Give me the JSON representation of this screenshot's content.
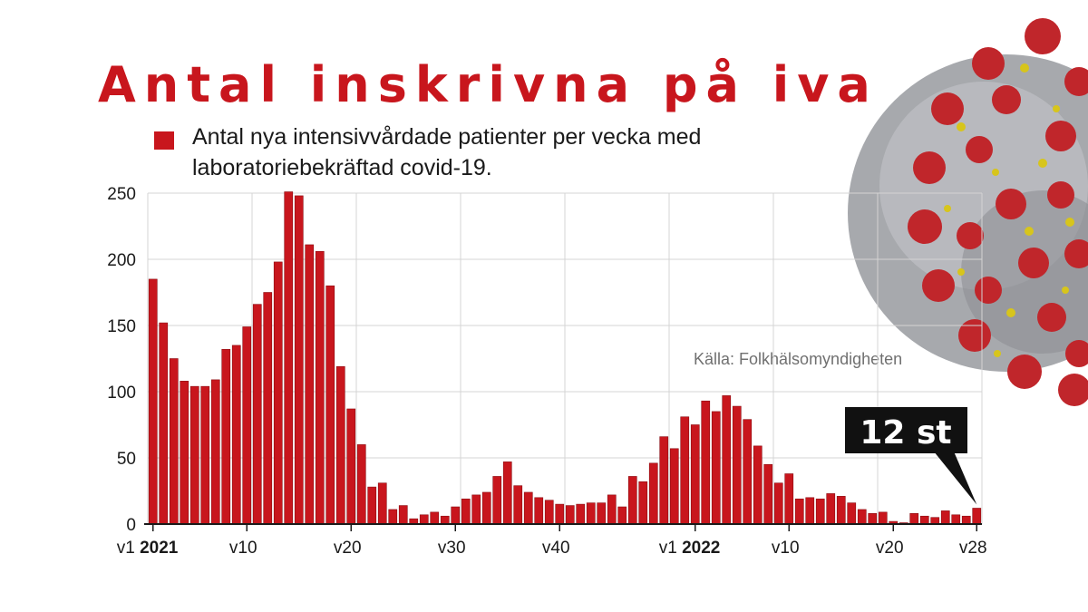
{
  "chart_data": {
    "type": "bar",
    "title": "Antal inskrivna på iva",
    "legend": "Antal nya intensivvårdade patienter per vecka med laboratoriebekräftad covid-19.",
    "source": "Källa: Folkhälsomyndigheten",
    "ylim": [
      0,
      250
    ],
    "yticks": [
      0,
      50,
      100,
      150,
      200,
      250
    ],
    "grid": true,
    "xtick_labels": [
      {
        "index": 0,
        "prefix": "v1 ",
        "bold": "2021"
      },
      {
        "index": 9,
        "prefix": "v10",
        "bold": ""
      },
      {
        "index": 19,
        "prefix": "v20",
        "bold": ""
      },
      {
        "index": 29,
        "prefix": "v30",
        "bold": ""
      },
      {
        "index": 39,
        "prefix": "v40",
        "bold": ""
      },
      {
        "index": 52,
        "prefix": "v1 ",
        "bold": "2022"
      },
      {
        "index": 61,
        "prefix": "v10",
        "bold": ""
      },
      {
        "index": 71,
        "prefix": "v20",
        "bold": ""
      },
      {
        "index": 79,
        "prefix": "v28",
        "bold": ""
      }
    ],
    "values": [
      185,
      152,
      125,
      108,
      104,
      104,
      109,
      132,
      135,
      149,
      166,
      175,
      198,
      251,
      248,
      211,
      206,
      180,
      119,
      87,
      60,
      28,
      31,
      11,
      14,
      4,
      7,
      9,
      6,
      13,
      19,
      22,
      24,
      36,
      47,
      29,
      24,
      20,
      18,
      15,
      14,
      15,
      16,
      16,
      22,
      13,
      36,
      32,
      46,
      66,
      57,
      81,
      75,
      93,
      85,
      97,
      89,
      79,
      59,
      45,
      31,
      38,
      19,
      20,
      19,
      23,
      21,
      16,
      11,
      8,
      9,
      2,
      1,
      8,
      6,
      5,
      10,
      7,
      6,
      12
    ],
    "series_color": "#c8161d",
    "callout": {
      "text": "12 st",
      "index": 79
    }
  }
}
